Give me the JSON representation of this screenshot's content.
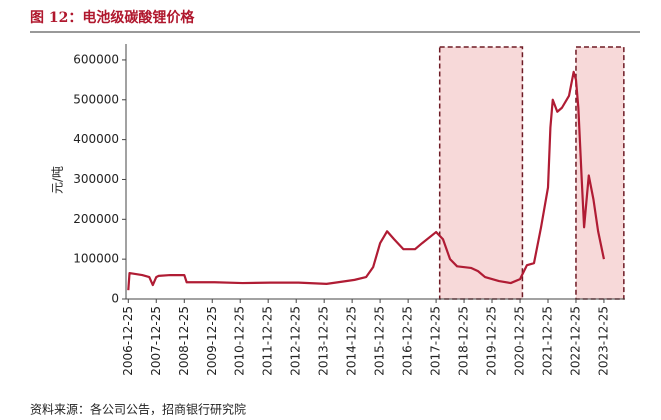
{
  "chart_data": {
    "type": "line",
    "title": "图 12：电池级碳酸锂价格",
    "y_label": "元/吨",
    "source": "资料来源：各公司公告，招商银行研究院",
    "ylim": [
      0,
      640000
    ],
    "yticks": [
      0,
      100000,
      200000,
      300000,
      400000,
      500000,
      600000
    ],
    "xlim": [
      "2006-11-25",
      "2024-09-25"
    ],
    "xticks": [
      "2006-12-25",
      "2007-12-25",
      "2008-12-25",
      "2009-12-25",
      "2010-12-25",
      "2011-12-25",
      "2012-12-25",
      "2013-12-25",
      "2014-12-25",
      "2015-12-25",
      "2016-12-25",
      "2017-12-25",
      "2018-12-25",
      "2019-12-25",
      "2020-12-25",
      "2021-12-25",
      "2022-12-25",
      "2023-12-25"
    ],
    "highlight_ranges": [
      [
        "2018-02-10",
        "2021-01-25"
      ],
      [
        "2022-12-25",
        "2024-09-10"
      ]
    ],
    "highlight_color": "#f7d9d9",
    "x": [
      "2006-12-25",
      "2007-01-10",
      "2007-06-25",
      "2007-09-25",
      "2007-11-10",
      "2007-12-25",
      "2008-01-25",
      "2008-06-25",
      "2008-12-25",
      "2009-01-25",
      "2010-01-25",
      "2011-01-25",
      "2012-01-25",
      "2013-01-25",
      "2014-01-25",
      "2014-06-25",
      "2015-01-25",
      "2015-06-25",
      "2015-09-25",
      "2015-12-25",
      "2016-03-25",
      "2016-06-25",
      "2016-10-25",
      "2017-03-25",
      "2017-06-25",
      "2017-12-25",
      "2018-03-25",
      "2018-06-25",
      "2018-09-25",
      "2019-03-25",
      "2019-06-25",
      "2019-09-25",
      "2020-03-25",
      "2020-08-25",
      "2020-12-25",
      "2021-03-25",
      "2021-06-25",
      "2021-09-25",
      "2021-12-25",
      "2022-01-25",
      "2022-02-25",
      "2022-04-25",
      "2022-06-25",
      "2022-09-25",
      "2022-11-25",
      "2022-12-25",
      "2023-01-25",
      "2023-03-10",
      "2023-04-10",
      "2023-06-10",
      "2023-08-10",
      "2023-10-10",
      "2023-12-25"
    ],
    "series": [
      {
        "name": "电池级碳酸锂价格",
        "color": "#b01c34",
        "values": [
          22000,
          65000,
          60000,
          55000,
          35000,
          55000,
          58000,
          60000,
          60000,
          42000,
          42000,
          40000,
          41000,
          41000,
          38000,
          42000,
          48000,
          55000,
          80000,
          140000,
          170000,
          150000,
          125000,
          125000,
          140000,
          168000,
          150000,
          100000,
          82000,
          78000,
          70000,
          55000,
          45000,
          40000,
          50000,
          85000,
          90000,
          180000,
          280000,
          430000,
          500000,
          470000,
          480000,
          510000,
          570000,
          550000,
          480000,
          300000,
          180000,
          310000,
          250000,
          170000,
          100000
        ]
      }
    ]
  }
}
